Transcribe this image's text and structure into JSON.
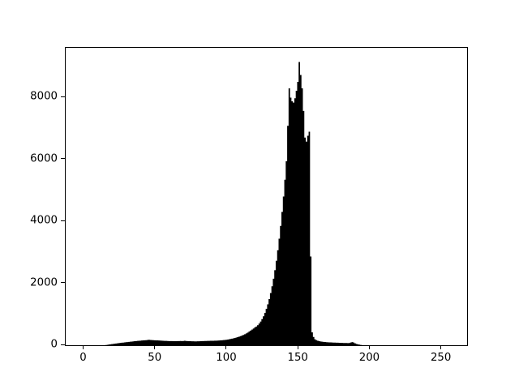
{
  "figure": {
    "background_color": "#ffffff",
    "spine_color": "#000000",
    "tick_color": "#000000",
    "label_color": "#000000"
  },
  "chart_data": {
    "type": "bar",
    "subtype": "histogram",
    "title": "",
    "xlabel": "",
    "ylabel": "",
    "legend": null,
    "grid": false,
    "bar_color": "#000000",
    "xlim": [
      -12.75,
      267.75
    ],
    "ylim": [
      0,
      9618
    ],
    "xticks": [
      0,
      50,
      100,
      150,
      200,
      250
    ],
    "yticks": [
      0,
      2000,
      4000,
      6000,
      8000
    ],
    "bin_start": 0,
    "bin_width": 1,
    "counts": [
      0,
      0,
      0,
      0,
      0,
      0,
      0,
      0,
      0,
      1,
      2,
      4,
      7,
      11,
      16,
      22,
      29,
      37,
      45,
      52,
      59,
      66,
      72,
      78,
      84,
      90,
      96,
      102,
      108,
      113,
      118,
      124,
      129,
      134,
      140,
      145,
      150,
      155,
      160,
      164,
      168,
      172,
      176,
      180,
      185,
      191,
      187,
      183,
      180,
      177,
      174,
      171,
      168,
      165,
      162,
      159,
      157,
      155,
      153,
      151,
      150,
      148,
      147,
      146,
      147,
      148,
      150,
      152,
      150,
      153,
      158,
      154,
      150,
      147,
      145,
      143,
      142,
      141,
      141,
      142,
      144,
      146,
      148,
      150,
      152,
      154,
      156,
      157,
      158,
      159,
      160,
      162,
      164,
      167,
      170,
      173,
      177,
      182,
      187,
      193,
      200,
      208,
      217,
      227,
      238,
      250,
      263,
      277,
      293,
      310,
      329,
      350,
      373,
      398,
      426,
      457,
      491,
      524,
      556,
      590,
      622,
      662,
      714,
      780,
      860,
      952,
      1060,
      1188,
      1336,
      1506,
      1700,
      1920,
      2166,
      2440,
      2744,
      3082,
      3456,
      3868,
      4320,
      4816,
      5360,
      5956,
      7100,
      8310,
      8010,
      7890,
      7850,
      7990,
      8230,
      8520,
      9160,
      8740,
      8310,
      7580,
      6720,
      6590,
      6780,
      6910,
      2880,
      430,
      285,
      208,
      178,
      158,
      147,
      138,
      130,
      124,
      119,
      114,
      111,
      108,
      106,
      104,
      102,
      100,
      98,
      96,
      94,
      92,
      90,
      88,
      87,
      86,
      85,
      88,
      103,
      116,
      104,
      78,
      58,
      44,
      34,
      26,
      20,
      15,
      11,
      8,
      6,
      5,
      4,
      3,
      2,
      2,
      1,
      1,
      1,
      0,
      0,
      0,
      0,
      0,
      0,
      0,
      0,
      0,
      0,
      0,
      0,
      0,
      0,
      0,
      0,
      0,
      0,
      0,
      0,
      0,
      0,
      0,
      0,
      0,
      0,
      0,
      0,
      0,
      0,
      0,
      0,
      0,
      0,
      0,
      0,
      0,
      0,
      0,
      0,
      0,
      0,
      0,
      0,
      0,
      0,
      0,
      0,
      0
    ]
  }
}
